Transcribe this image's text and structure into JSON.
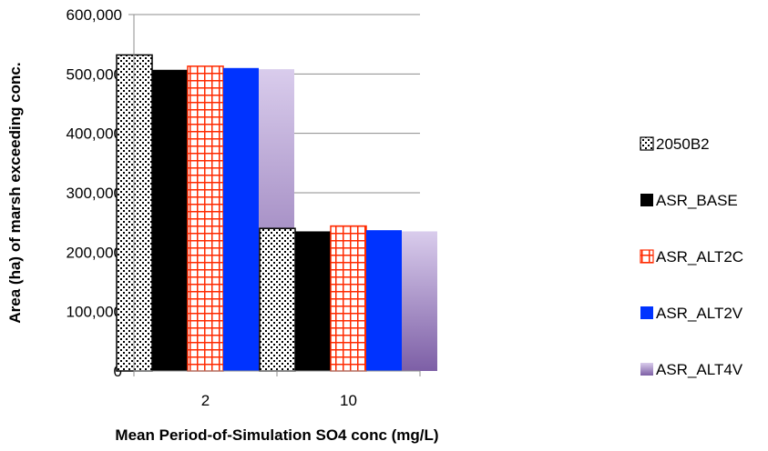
{
  "chart_data": {
    "type": "bar",
    "categories": [
      "2",
      "10"
    ],
    "series": [
      {
        "name": "2050B2",
        "values": [
          532000,
          240000
        ],
        "pattern": "dots",
        "color": "#000000"
      },
      {
        "name": "ASR_BASE",
        "values": [
          507000,
          235000
        ],
        "pattern": "solid",
        "color": "#000000"
      },
      {
        "name": "ASR_ALT2C",
        "values": [
          513000,
          244000
        ],
        "pattern": "grid",
        "color": "#ff2a00"
      },
      {
        "name": "ASR_ALT2V",
        "values": [
          510000,
          237000
        ],
        "pattern": "solid",
        "color": "#0033ff"
      },
      {
        "name": "ASR_ALT4V",
        "values": [
          508000,
          235000
        ],
        "pattern": "gradient",
        "color": "#8a6cb0"
      }
    ],
    "xlabel": "Mean Period-of-Simulation SO4 conc (mg/L)",
    "ylabel": "Area (ha) of marsh exceeding conc.",
    "ylim": [
      0,
      600000
    ],
    "yticks": [
      "0",
      "100,000",
      "200,000",
      "300,000",
      "400,000",
      "500,000",
      "600,000"
    ],
    "grid": true,
    "legend_position": "right"
  }
}
